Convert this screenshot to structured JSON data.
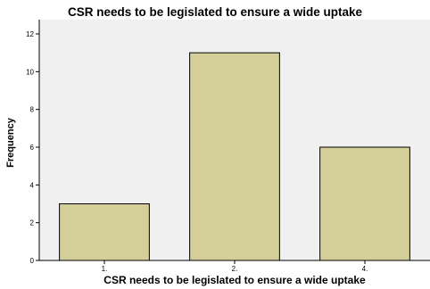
{
  "chart_data": {
    "type": "bar",
    "title": "CSR needs to be legislated to ensure a wide uptake",
    "xlabel": "CSR needs to be legislated to ensure a wide uptake",
    "ylabel": "Frequency",
    "categories": [
      "1.",
      "2.",
      "4."
    ],
    "values": [
      3,
      11,
      6
    ],
    "ylim": [
      0,
      12
    ],
    "yticks": [
      0,
      2,
      4,
      6,
      8,
      10,
      12
    ],
    "grid": false,
    "legend": "none",
    "colors": {
      "bar_fill": "#d4cf98",
      "bar_stroke": "#000000",
      "plot_background": "#f0f0f0",
      "page_background": "#ffffff"
    }
  }
}
